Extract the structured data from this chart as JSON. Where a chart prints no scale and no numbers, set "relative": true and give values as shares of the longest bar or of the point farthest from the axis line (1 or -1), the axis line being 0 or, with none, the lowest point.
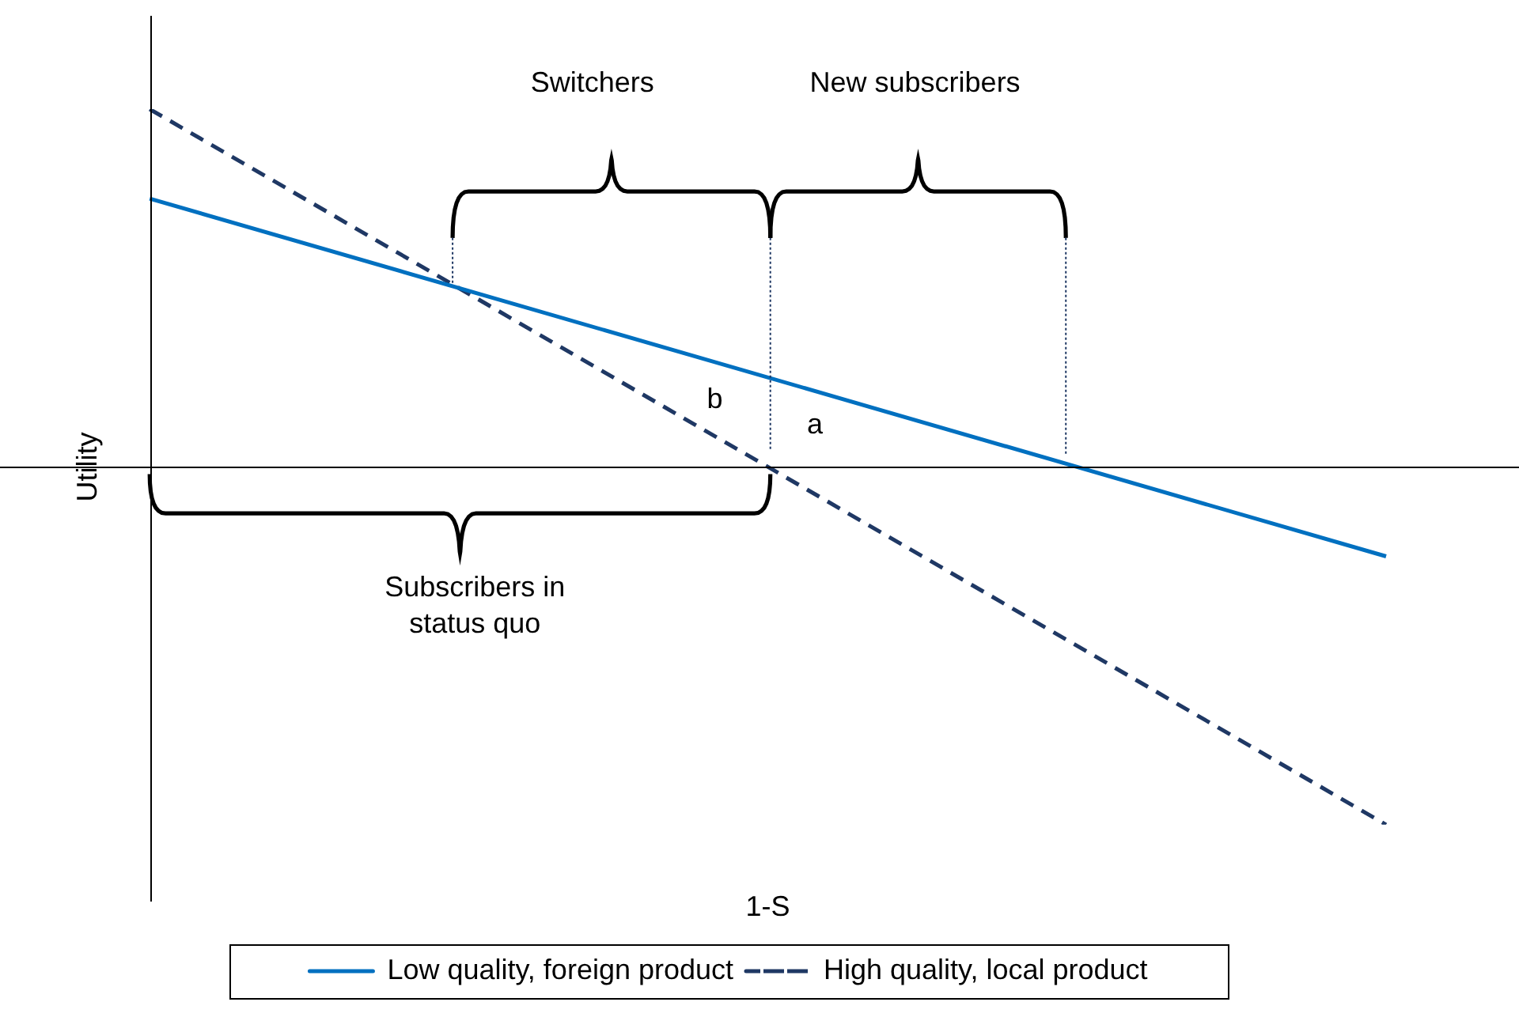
{
  "chart_data": {
    "type": "line",
    "relative": true,
    "xlabel": "1-S",
    "ylabel": "Utility",
    "categories": [
      null,
      null
    ],
    "legend": "bottom",
    "marker": "none",
    "grid": false,
    "series": [
      {
        "name": "Low quality, foreign product",
        "color": "#0070c0",
        "values": [
          0.75,
          -0.25
        ],
        "line_style": "solid"
      },
      {
        "name": "High quality, local product",
        "color": "#1f3864",
        "values": [
          1,
          -1
        ],
        "line_style": "dashed"
      }
    ],
    "annotations": [
      "Switchers",
      "New subscribers",
      "Subscribers in status quo",
      "b",
      "a"
    ]
  }
}
